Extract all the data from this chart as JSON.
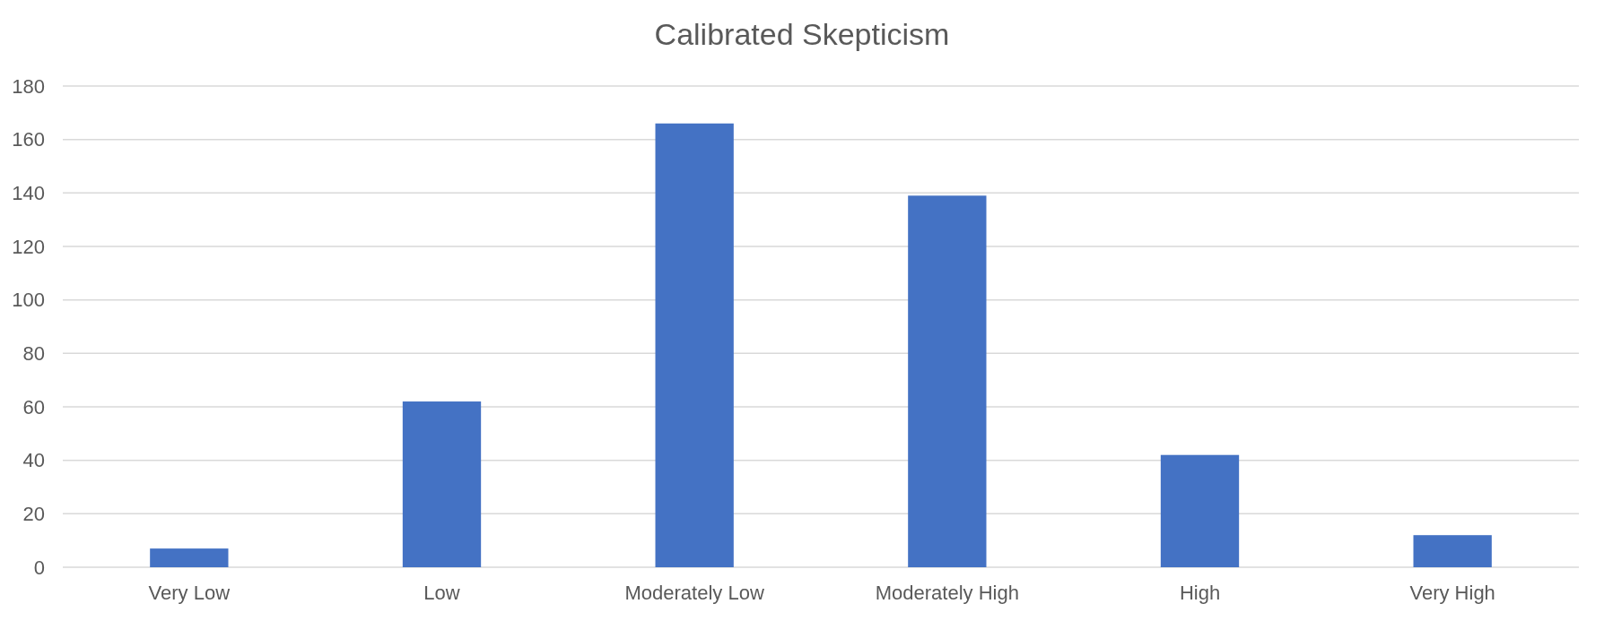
{
  "chart_data": {
    "type": "bar",
    "title": "Calibrated Skepticism",
    "categories": [
      "Very Low",
      "Low",
      "Moderately Low",
      "Moderately High",
      "High",
      "Very High"
    ],
    "values": [
      7,
      62,
      166,
      139,
      42,
      12
    ],
    "color": "#4472c4",
    "ylim": [
      0,
      180
    ],
    "yticks": [
      0,
      20,
      40,
      60,
      80,
      100,
      120,
      140,
      160,
      180
    ],
    "grid": "y"
  }
}
